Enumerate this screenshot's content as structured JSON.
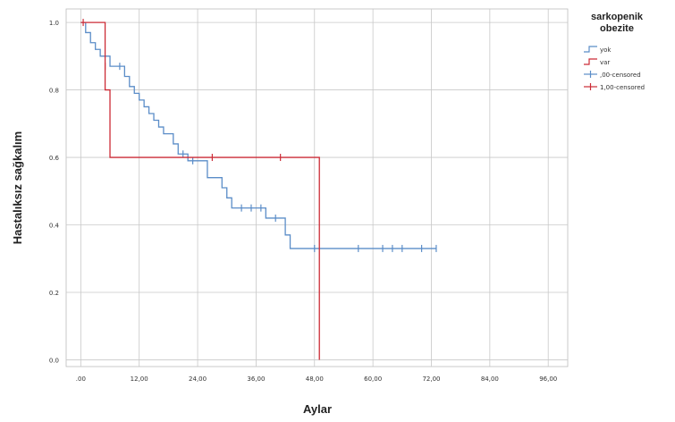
{
  "chart_data": {
    "type": "line",
    "subtype": "kaplan-meier",
    "xlabel": "Aylar",
    "ylabel": "Hastalıksız sağkalım",
    "x_ticks": [
      ".00",
      "12,00",
      "24,00",
      "36,00",
      "48,00",
      "60,00",
      "72,00",
      "84,00",
      "96,00"
    ],
    "x_tick_values": [
      0,
      12,
      24,
      36,
      48,
      60,
      72,
      84,
      96
    ],
    "y_ticks": [
      "0.0",
      "0.2",
      "0.4",
      "0.6",
      "0.8",
      "1.0"
    ],
    "y_tick_values": [
      0,
      0.2,
      0.4,
      0.6,
      0.8,
      1.0
    ],
    "xlim": [
      -3,
      100
    ],
    "ylim": [
      -0.02,
      1.04
    ],
    "grid": true,
    "legend": {
      "position": "right",
      "title": "sarkopenik obezite",
      "entries": [
        {
          "label": "yok",
          "color": "#5b8dc8",
          "kind": "line"
        },
        {
          "label": "var",
          "color": "#cc2b36",
          "kind": "line"
        },
        {
          "label": ",00-censored",
          "color": "#5b8dc8",
          "kind": "censor"
        },
        {
          "label": "1,00-censored",
          "color": "#cc2b36",
          "kind": "censor"
        }
      ]
    },
    "series": [
      {
        "name": "yok",
        "color": "#5b8dc8",
        "points": [
          [
            0,
            1.0
          ],
          [
            1,
            0.97
          ],
          [
            2,
            0.94
          ],
          [
            3,
            0.92
          ],
          [
            4,
            0.9
          ],
          [
            6,
            0.87
          ],
          [
            9,
            0.84
          ],
          [
            10,
            0.81
          ],
          [
            11,
            0.79
          ],
          [
            12,
            0.77
          ],
          [
            13,
            0.75
          ],
          [
            14,
            0.73
          ],
          [
            15,
            0.71
          ],
          [
            16,
            0.69
          ],
          [
            17,
            0.67
          ],
          [
            19,
            0.64
          ],
          [
            20,
            0.61
          ],
          [
            22,
            0.59
          ],
          [
            26,
            0.54
          ],
          [
            29,
            0.51
          ],
          [
            30,
            0.48
          ],
          [
            31,
            0.45
          ],
          [
            38,
            0.42
          ],
          [
            42,
            0.37
          ],
          [
            43,
            0.33
          ],
          [
            73,
            0.33
          ]
        ],
        "censored": [
          [
            8,
            0.87
          ],
          [
            21,
            0.61
          ],
          [
            23,
            0.59
          ],
          [
            33,
            0.45
          ],
          [
            35,
            0.45
          ],
          [
            37,
            0.45
          ],
          [
            40,
            0.42
          ],
          [
            48,
            0.33
          ],
          [
            57,
            0.33
          ],
          [
            62,
            0.33
          ],
          [
            64,
            0.33
          ],
          [
            66,
            0.33
          ],
          [
            70,
            0.33
          ],
          [
            73,
            0.33
          ]
        ]
      },
      {
        "name": "var",
        "color": "#cc2b36",
        "points": [
          [
            0,
            1.0
          ],
          [
            5,
            1.0
          ],
          [
            5,
            0.8
          ],
          [
            6,
            0.8
          ],
          [
            6,
            0.6
          ],
          [
            49,
            0.6
          ],
          [
            49,
            0.0
          ]
        ],
        "censored": [
          [
            0.5,
            1.0
          ],
          [
            5,
            0.87
          ],
          [
            27,
            0.6
          ],
          [
            41,
            0.6
          ]
        ]
      }
    ]
  }
}
